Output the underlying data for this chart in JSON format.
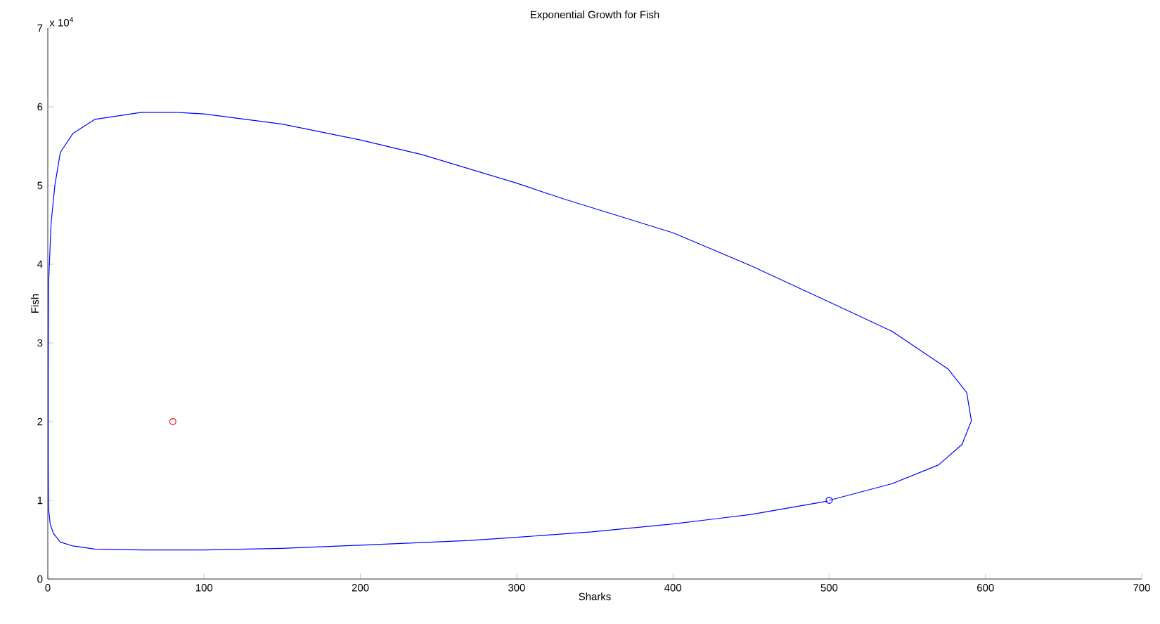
{
  "chart_data": {
    "type": "line",
    "title": "Exponential Growth for Fish",
    "xlabel": "Sharks",
    "ylabel": "Fish",
    "annotations": [
      "x 10$^{4}$"
    ],
    "xlim": [
      0,
      700
    ],
    "xticks": [
      0,
      100,
      200,
      300,
      400,
      500,
      600,
      700
    ],
    "ylim": [
      0,
      7
    ],
    "yticks": [
      0,
      1,
      2,
      3,
      4,
      5,
      6,
      7
    ],
    "grid": false,
    "series": [
      {
        "color": "#0000ff",
        "marker": "none",
        "x": [
          500,
          540,
          570,
          585,
          591,
          588,
          576,
          540,
          500,
          450,
          400,
          330,
          300,
          240,
          200,
          150,
          100,
          81,
          60,
          30,
          16,
          8,
          4.5,
          2.1,
          0.6,
          0.3,
          0.3,
          0.6,
          1.5,
          3.6,
          8,
          16,
          30,
          60,
          100,
          150,
          200,
          270,
          300,
          348,
          400,
          450,
          499
        ],
        "values": [
          1.0,
          1.21,
          1.45,
          1.71,
          2.01,
          2.37,
          2.67,
          3.15,
          3.52,
          3.98,
          4.4,
          4.83,
          5.03,
          5.39,
          5.58,
          5.78,
          5.91,
          5.93,
          5.93,
          5.84,
          5.66,
          5.42,
          5.0,
          4.52,
          3.8,
          2.6,
          1.42,
          0.88,
          0.7,
          0.58,
          0.47,
          0.42,
          0.38,
          0.37,
          0.37,
          0.39,
          0.43,
          0.49,
          0.53,
          0.6,
          0.7,
          0.82,
          0.99
        ]
      },
      {
        "type": "scatter",
        "color": "#0000ff",
        "marker": "circle",
        "x": [
          500
        ],
        "values": [
          1
        ]
      },
      {
        "type": "scatter",
        "color": "#ff0000",
        "marker": "circle",
        "x": [
          80
        ],
        "values": [
          2
        ]
      }
    ]
  }
}
